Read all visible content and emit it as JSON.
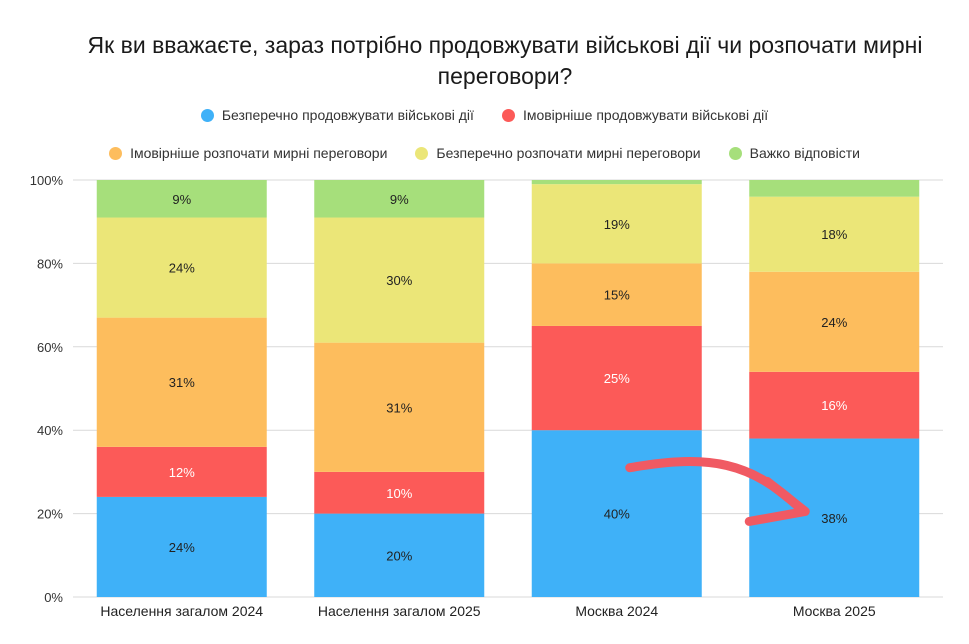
{
  "chart_data": {
    "type": "bar",
    "stacked": true,
    "title": "Як ви вважаєте, зараз потрібно продовжувати військові дії чи розпочати мирні переговори?",
    "xlabel": "",
    "ylabel": "",
    "ylim": [
      0,
      100
    ],
    "yticks": [
      "0%",
      "20%",
      "40%",
      "60%",
      "80%",
      "100%"
    ],
    "categories": [
      "Населення загалом 2024",
      "Населення загалом 2025",
      "Москва 2024",
      "Москва 2025"
    ],
    "series": [
      {
        "name": "Безперечно продовжувати військові дії",
        "color": "#3fb1f8",
        "values": [
          24,
          20,
          40,
          38
        ],
        "labels": [
          "24%",
          "20%",
          "40%",
          "38%"
        ],
        "label_color": "#222222"
      },
      {
        "name": "Імовірніше продовжувати військові дії",
        "color": "#fc5a58",
        "values": [
          12,
          10,
          25,
          16
        ],
        "labels": [
          "12%",
          "10%",
          "25%",
          "16%"
        ],
        "label_color": "#ffffff"
      },
      {
        "name": "Імовірніше розпочати мирні переговори",
        "color": "#fdbd5d",
        "values": [
          31,
          31,
          15,
          24
        ],
        "labels": [
          "31%",
          "31%",
          "15%",
          "24%"
        ],
        "label_color": "#222222"
      },
      {
        "name": "Безперечно розпочати мирні переговори",
        "color": "#ebe678",
        "values": [
          24,
          30,
          19,
          18
        ],
        "labels": [
          "24%",
          "30%",
          "19%",
          "18%"
        ],
        "label_color": "#222222"
      },
      {
        "name": "Важко відповісти",
        "color": "#a6df7b",
        "values": [
          9,
          9,
          1,
          4
        ],
        "labels": [
          "9%",
          "9%",
          "",
          ""
        ],
        "label_color": "#222222"
      }
    ],
    "legend_position": "top-center",
    "grid": true,
    "annotation": {
      "type": "arrow",
      "color": "#f05a63",
      "from_category": "Москва 2024",
      "to_category": "Москва 2025"
    }
  }
}
